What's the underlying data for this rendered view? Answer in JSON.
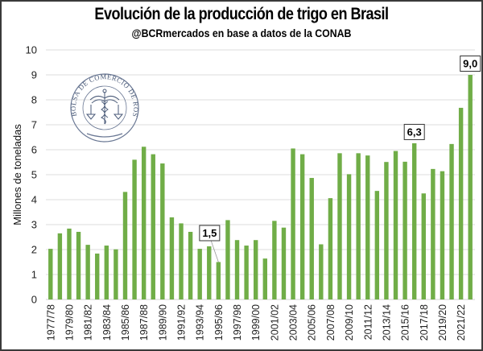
{
  "chart_data": {
    "type": "bar",
    "title": "Evolución de la producción de trigo en Brasil",
    "subtitle": "@BCRmercados en base a datos de la CONAB",
    "xlabel": "",
    "ylabel": "Millones de toneladas",
    "ylim": [
      0,
      10
    ],
    "yticks": [
      "0",
      "1",
      "2",
      "3",
      "4",
      "5",
      "6",
      "7",
      "8",
      "9",
      "10"
    ],
    "grid": true,
    "legend": "none",
    "bar_color": "#70ad47",
    "categories": [
      "1977/78",
      "1978/79",
      "1979/80",
      "1980/81",
      "1981/82",
      "1982/83",
      "1983/84",
      "1984/85",
      "1985/86",
      "1986/87",
      "1987/88",
      "1988/89",
      "1989/90",
      "1990/91",
      "1991/92",
      "1992/93",
      "1993/94",
      "1994/95",
      "1995/96",
      "1996/97",
      "1997/98",
      "1998/99",
      "1999/00",
      "2000/01",
      "2001/02",
      "2002/03",
      "2003/04",
      "2004/05",
      "2005/06",
      "2006/07",
      "2007/08",
      "2008/09",
      "2009/10",
      "2010/11",
      "2011/12",
      "2012/13",
      "2013/14",
      "2014/15",
      "2015/16",
      "2016/17",
      "2017/18",
      "2018/19",
      "2019/20",
      "2020/21",
      "2021/22",
      "2022/23"
    ],
    "xtick_labels_shown": [
      "1977/78",
      "1979/80",
      "1981/82",
      "1983/84",
      "1985/86",
      "1987/88",
      "1989/90",
      "1991/92",
      "1993/94",
      "1995/96",
      "1997/98",
      "1999/00",
      "2001/02",
      "2003/04",
      "2005/06",
      "2007/08",
      "2009/10",
      "2011/12",
      "2013/14",
      "2015/16",
      "2017/18",
      "2019/20",
      "2021/22"
    ],
    "values": [
      2.03,
      2.65,
      2.84,
      2.71,
      2.19,
      1.84,
      2.16,
      2.01,
      4.31,
      5.6,
      6.12,
      5.82,
      5.45,
      3.29,
      3.05,
      2.71,
      2.03,
      2.13,
      1.5,
      3.18,
      2.38,
      2.16,
      2.38,
      1.64,
      3.15,
      2.88,
      6.05,
      5.82,
      4.87,
      2.21,
      4.06,
      5.86,
      5.02,
      5.86,
      5.77,
      4.35,
      5.51,
      5.95,
      5.52,
      6.26,
      4.25,
      5.23,
      5.14,
      6.23,
      7.68,
      9.0
    ],
    "annotations": [
      {
        "category": "1995/96",
        "text": "1,5"
      },
      {
        "category": "2016/17",
        "text": "6,3"
      },
      {
        "category": "2022/23",
        "text": "9,0"
      }
    ]
  },
  "logo": {
    "text": "BOLSA DE COMERCIO DE ROSARIO"
  }
}
